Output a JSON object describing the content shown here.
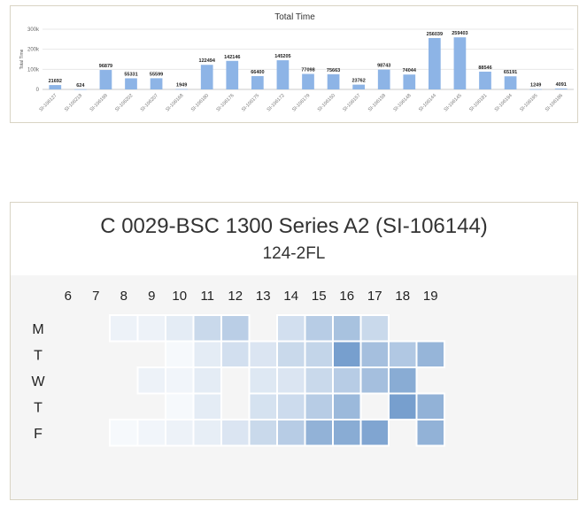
{
  "chart_data": [
    {
      "type": "bar",
      "title": "Total Time",
      "xlabel": "",
      "ylabel": "Total Time",
      "ylim": [
        0,
        300000
      ],
      "yticks": [
        0,
        100000,
        200000,
        300000
      ],
      "ytick_labels": [
        "0",
        "100k",
        "200k",
        "300k"
      ],
      "color": "#8db4e6",
      "categories": [
        "SI-106127",
        "SI-106218",
        "SI-106199",
        "SI-106202",
        "SI-106207",
        "SI-106168",
        "SI-106180",
        "SI-106176",
        "SI-106175",
        "SI-106172",
        "SI-106179",
        "SI-106150",
        "SI-106157",
        "SI-106158",
        "SI-106148",
        "SI-106144",
        "SI-106145",
        "SI-106181",
        "SI-106194",
        "SI-106195",
        "SI-106186"
      ],
      "values": [
        21692,
        624,
        96879,
        55331,
        55599,
        1949,
        122494,
        142146,
        66400,
        145205,
        77098,
        75663,
        23762,
        98743,
        74044,
        256039,
        259403,
        88546,
        65191,
        1249,
        4091
      ],
      "value_labels": [
        "21692",
        "624",
        "96879",
        "55331",
        "55599",
        "1949",
        "122494",
        "142146",
        "66400",
        "145205",
        "77098",
        "75663",
        "23762",
        "98743",
        "74044",
        "256039",
        "259403",
        "88546",
        "65191",
        "1249",
        "4091"
      ]
    },
    {
      "type": "heatmap",
      "title": "C 0029-BSC 1300 Series A2 (SI-106144)",
      "subtitle": "124-2FL",
      "x_labels": [
        "6",
        "7",
        "8",
        "9",
        "10",
        "11",
        "12",
        "13",
        "14",
        "15",
        "16",
        "17",
        "18",
        "19"
      ],
      "y_labels": [
        "M",
        "T",
        "W",
        "T",
        "F"
      ],
      "color_low": "#ffffff",
      "color_high": "#4a7fbd",
      "scale_max": 10,
      "values": [
        [
          0,
          0,
          1,
          1,
          1.5,
          3,
          3.8,
          0,
          2.5,
          4,
          4.8,
          3,
          0,
          0
        ],
        [
          0,
          0,
          0,
          0,
          0.5,
          1.5,
          2.5,
          2,
          3,
          3.3,
          7.5,
          5,
          4.3,
          5.8
        ],
        [
          0,
          0,
          0,
          1,
          0.8,
          1.5,
          0,
          1.8,
          2,
          3,
          4,
          5,
          6.5,
          0
        ],
        [
          0,
          0,
          0,
          0,
          0.5,
          1.5,
          0,
          2.3,
          2.8,
          4,
          5.5,
          0,
          7.5,
          6
        ],
        [
          0,
          0,
          0.5,
          0.8,
          1,
          1.3,
          2,
          3,
          4,
          6,
          6.5,
          7,
          0,
          6
        ]
      ]
    }
  ]
}
